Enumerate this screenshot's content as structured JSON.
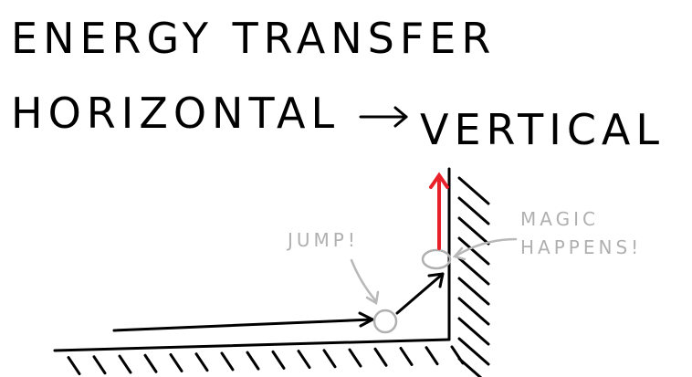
{
  "header": {
    "title": "ENERGY TRANSFER",
    "from": "HORIZONTAL",
    "to": "VERTICAL"
  },
  "annotations": {
    "jump": "JUMP!",
    "magic": [
      "MAGIC",
      "HAPPENS!"
    ]
  }
}
